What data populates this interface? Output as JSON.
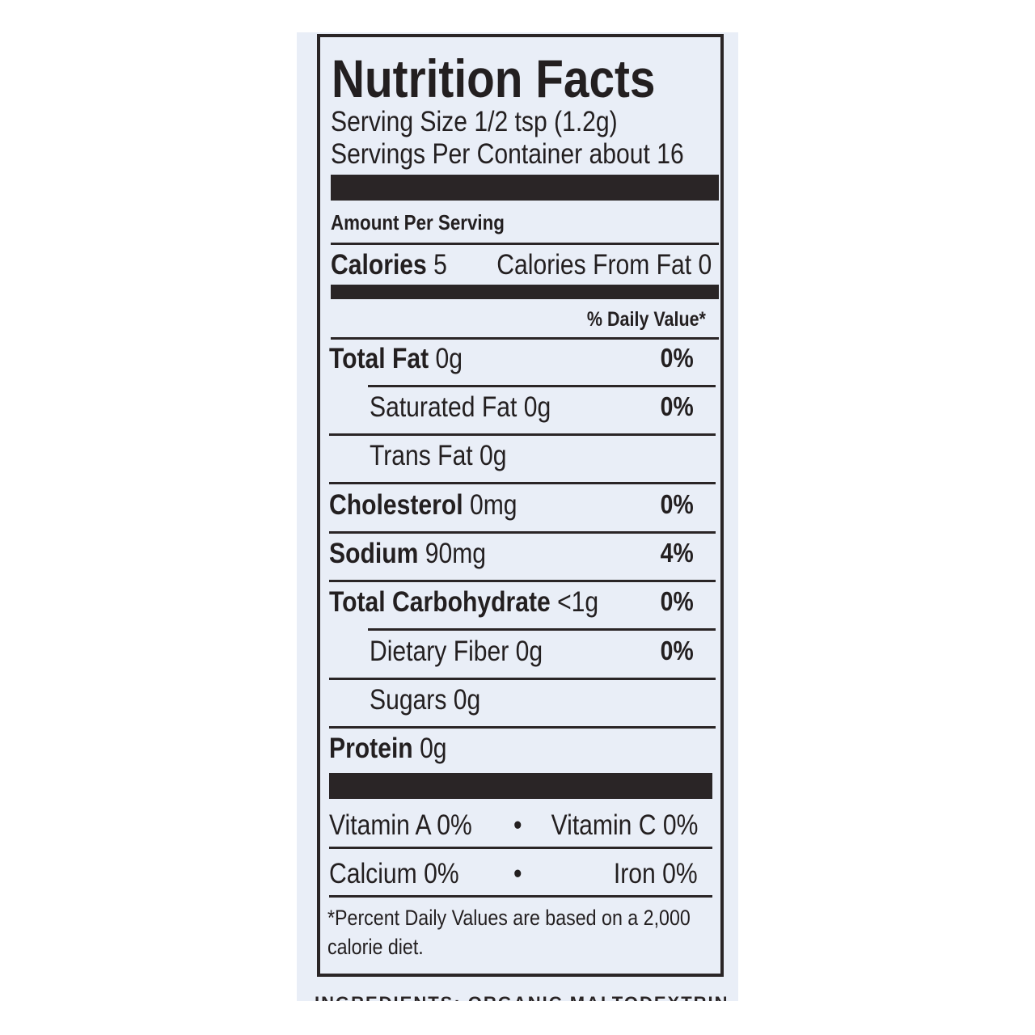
{
  "title": "Nutrition Facts",
  "serving_size": "Serving Size 1/2 tsp (1.2g)",
  "servings_per_container": "Servings Per Container about 16",
  "amount_per_serving": "Amount Per Serving",
  "calories": {
    "label": "Calories",
    "value": "5",
    "from_fat": "Calories From Fat 0"
  },
  "daily_value_header": "% Daily Value*",
  "nutrients": [
    {
      "label": "Total Fat",
      "amount": "0g",
      "dv": "0%"
    },
    {
      "label": "Saturated Fat",
      "amount": "0g",
      "dv": "0%"
    },
    {
      "label": "Trans Fat",
      "amount": "0g",
      "dv": ""
    },
    {
      "label": "Cholesterol",
      "amount": "0mg",
      "dv": "0%"
    },
    {
      "label": "Sodium",
      "amount": "90mg",
      "dv": "4%"
    },
    {
      "label": "Total Carbohydrate",
      "amount": "<1g",
      "dv": "0%"
    },
    {
      "label": "Dietary Fiber",
      "amount": "0g",
      "dv": "0%"
    },
    {
      "label": "Sugars",
      "amount": "0g",
      "dv": ""
    },
    {
      "label": "Protein",
      "amount": "0g",
      "dv": ""
    }
  ],
  "vitamins": {
    "a": "Vitamin A 0%",
    "c": "Vitamin C 0%",
    "calcium": "Calcium 0%",
    "iron": "Iron 0%",
    "bullet": "•"
  },
  "footnote": {
    "line1": "*Percent Daily Values are based on a 2,000",
    "line2": "calorie diet."
  },
  "ingredients_partial": "INGREDIENTS: ORGANIC MALTODEXTRIN, SEA"
}
